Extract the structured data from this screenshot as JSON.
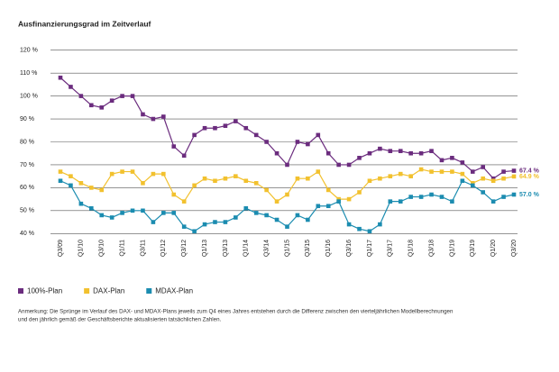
{
  "chart_data": {
    "type": "line",
    "title": "Ausfinanzierungsgrad im Zeitverlauf",
    "note": "Anmerkung: Die Sprünge im Verlauf des DAX- und MDAX-Plans jeweils zum Q4 eines Jahres entstehen durch die Differenz zwischen den vierteljährlichen Modellberechnungen",
    "note2": "und den jährlich gemäß der Geschäftsberichte aktualisierten tatsächlichen Zahlen.",
    "categories": [
      "Q3/09",
      null,
      "Q1/10",
      null,
      "Q3/10",
      null,
      "Q1/11",
      null,
      "Q3/11",
      null,
      "Q1/12",
      null,
      "Q3/12",
      null,
      "Q1/13",
      null,
      "Q3/13",
      null,
      "Q1/14",
      null,
      "Q3/14",
      null,
      "Q1/15",
      null,
      "Q3/15",
      null,
      "Q1/16",
      null,
      "Q3/16",
      null,
      "Q1/17",
      null,
      "Q3/17",
      null,
      "Q1/18",
      null,
      "Q3/18",
      null,
      "Q1/19",
      null,
      "Q3/19",
      null,
      "Q1/20",
      null,
      "Q3/20"
    ],
    "series": [
      {
        "name": "100%-Plan",
        "color": "#6b2c7e",
        "values": [
          108,
          104,
          100,
          96,
          95,
          98,
          100,
          100,
          92,
          90,
          91,
          78,
          74,
          83,
          86,
          86,
          87,
          89,
          86,
          83,
          80,
          75,
          70,
          80,
          79,
          83,
          75,
          70,
          70,
          73,
          75,
          77,
          76,
          76,
          75,
          75,
          76,
          72,
          73,
          71,
          67,
          69,
          64,
          67,
          67.4
        ],
        "value_labels": [
          null,
          null,
          null,
          null,
          null,
          null,
          null,
          null,
          null,
          null,
          null,
          null,
          null,
          null,
          null,
          null,
          null,
          null,
          null,
          null,
          null,
          null,
          null,
          null,
          null,
          null,
          null,
          null,
          null,
          null,
          null,
          null,
          null,
          null,
          null,
          null,
          null,
          null,
          null,
          null,
          null,
          null,
          null,
          null,
          "67.4 %"
        ]
      },
      {
        "name": "DAX-Plan",
        "color": "#f2c12e",
        "values": [
          67,
          65,
          62,
          60,
          59,
          66,
          67,
          67,
          62,
          66,
          66,
          57,
          54,
          61,
          64,
          63,
          64,
          65,
          63,
          62,
          59,
          54,
          57,
          64,
          64,
          67,
          59,
          55,
          55,
          58,
          63,
          64,
          65,
          66,
          65,
          68,
          67,
          67,
          67,
          66,
          62,
          64,
          63,
          64,
          64.9
        ],
        "value_labels": [
          null,
          null,
          null,
          null,
          null,
          null,
          null,
          null,
          null,
          null,
          null,
          null,
          null,
          null,
          null,
          null,
          null,
          null,
          null,
          null,
          null,
          null,
          null,
          null,
          null,
          null,
          null,
          null,
          null,
          null,
          null,
          null,
          null,
          null,
          null,
          null,
          null,
          null,
          null,
          null,
          null,
          null,
          null,
          null,
          "64.9 %"
        ]
      },
      {
        "name": "MDAX-Plan",
        "color": "#1b8cb0",
        "values": [
          63,
          61,
          53,
          51,
          48,
          47,
          49,
          50,
          50,
          45,
          49,
          49,
          43,
          41,
          44,
          45,
          45,
          47,
          51,
          49,
          48,
          46,
          43,
          48,
          46,
          52,
          52,
          54,
          44,
          42,
          41,
          44,
          54,
          54,
          56,
          56,
          57,
          56,
          54,
          63,
          61,
          58,
          54,
          56,
          57
        ],
        "value_labels": [
          null,
          null,
          null,
          null,
          null,
          null,
          null,
          null,
          null,
          null,
          null,
          null,
          null,
          null,
          null,
          null,
          null,
          null,
          null,
          null,
          null,
          null,
          null,
          null,
          null,
          null,
          null,
          null,
          null,
          null,
          null,
          null,
          null,
          null,
          null,
          null,
          null,
          null,
          null,
          null,
          null,
          null,
          null,
          null,
          "57.0 %"
        ]
      }
    ],
    "ylim": [
      35,
      125
    ],
    "yticks": [
      {
        "value": 40,
        "label": "40 %"
      },
      {
        "value": 50,
        "label": "50 %"
      },
      {
        "value": 60,
        "label": "60 %"
      },
      {
        "value": 70,
        "label": "70 %"
      },
      {
        "value": 80,
        "label": "80 %"
      },
      {
        "value": 90,
        "label": "90 %"
      },
      {
        "value": 100,
        "label": "100 %"
      },
      {
        "value": 110,
        "label": "110 %"
      },
      {
        "value": 120,
        "label": "120 %"
      }
    ],
    "grid": true,
    "legend": "bottom"
  }
}
